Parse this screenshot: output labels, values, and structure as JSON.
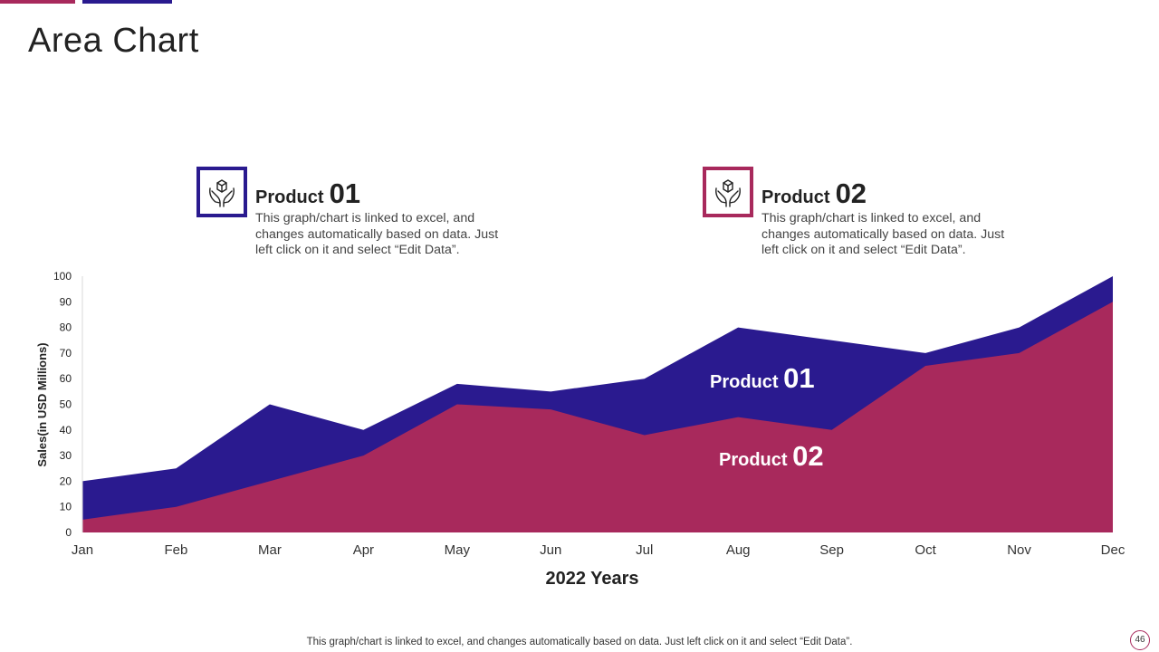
{
  "page": {
    "title": "Area Chart",
    "footer": "This graph/chart is linked to excel,  and changes automatically based on data. Just left click on it and select “Edit Data”.",
    "page_number": "46"
  },
  "colors": {
    "product01": "#2a1a8f",
    "product02": "#a8295c",
    "topbar_left": "#a8295c",
    "topbar_right": "#2a1a8f"
  },
  "legend": [
    {
      "word": "Product",
      "number": "01",
      "icon": "hands-box-icon",
      "description": "This graph/chart is linked to excel, and changes automatically based on data. Just left click on it and select “Edit Data”."
    },
    {
      "word": "Product",
      "number": "02",
      "icon": "hands-box-icon",
      "description": "This graph/chart is linked to excel, and changes automatically based on data. Just left click on it and select “Edit Data”."
    }
  ],
  "chart_data": {
    "type": "area",
    "categories": [
      "Jan",
      "Feb",
      "Mar",
      "Apr",
      "May",
      "Jun",
      "Jul",
      "Aug",
      "Sep",
      "Oct",
      "Nov",
      "Dec"
    ],
    "series": [
      {
        "name": "Product 01",
        "values": [
          20,
          25,
          50,
          40,
          58,
          55,
          60,
          80,
          75,
          70,
          80,
          100
        ]
      },
      {
        "name": "Product 02",
        "values": [
          5,
          10,
          20,
          30,
          50,
          48,
          38,
          45,
          40,
          65,
          70,
          90
        ]
      }
    ],
    "series_labels": [
      {
        "word": "Product",
        "number": "01"
      },
      {
        "word": "Product",
        "number": "02"
      }
    ],
    "xlabel": "2022 Years",
    "ylabel": "Sales(in USD Millions)",
    "ylim": [
      0,
      100
    ],
    "yticks": [
      0,
      10,
      20,
      30,
      40,
      50,
      60,
      70,
      80,
      90,
      100
    ],
    "grid": false,
    "legend_position": "top"
  }
}
